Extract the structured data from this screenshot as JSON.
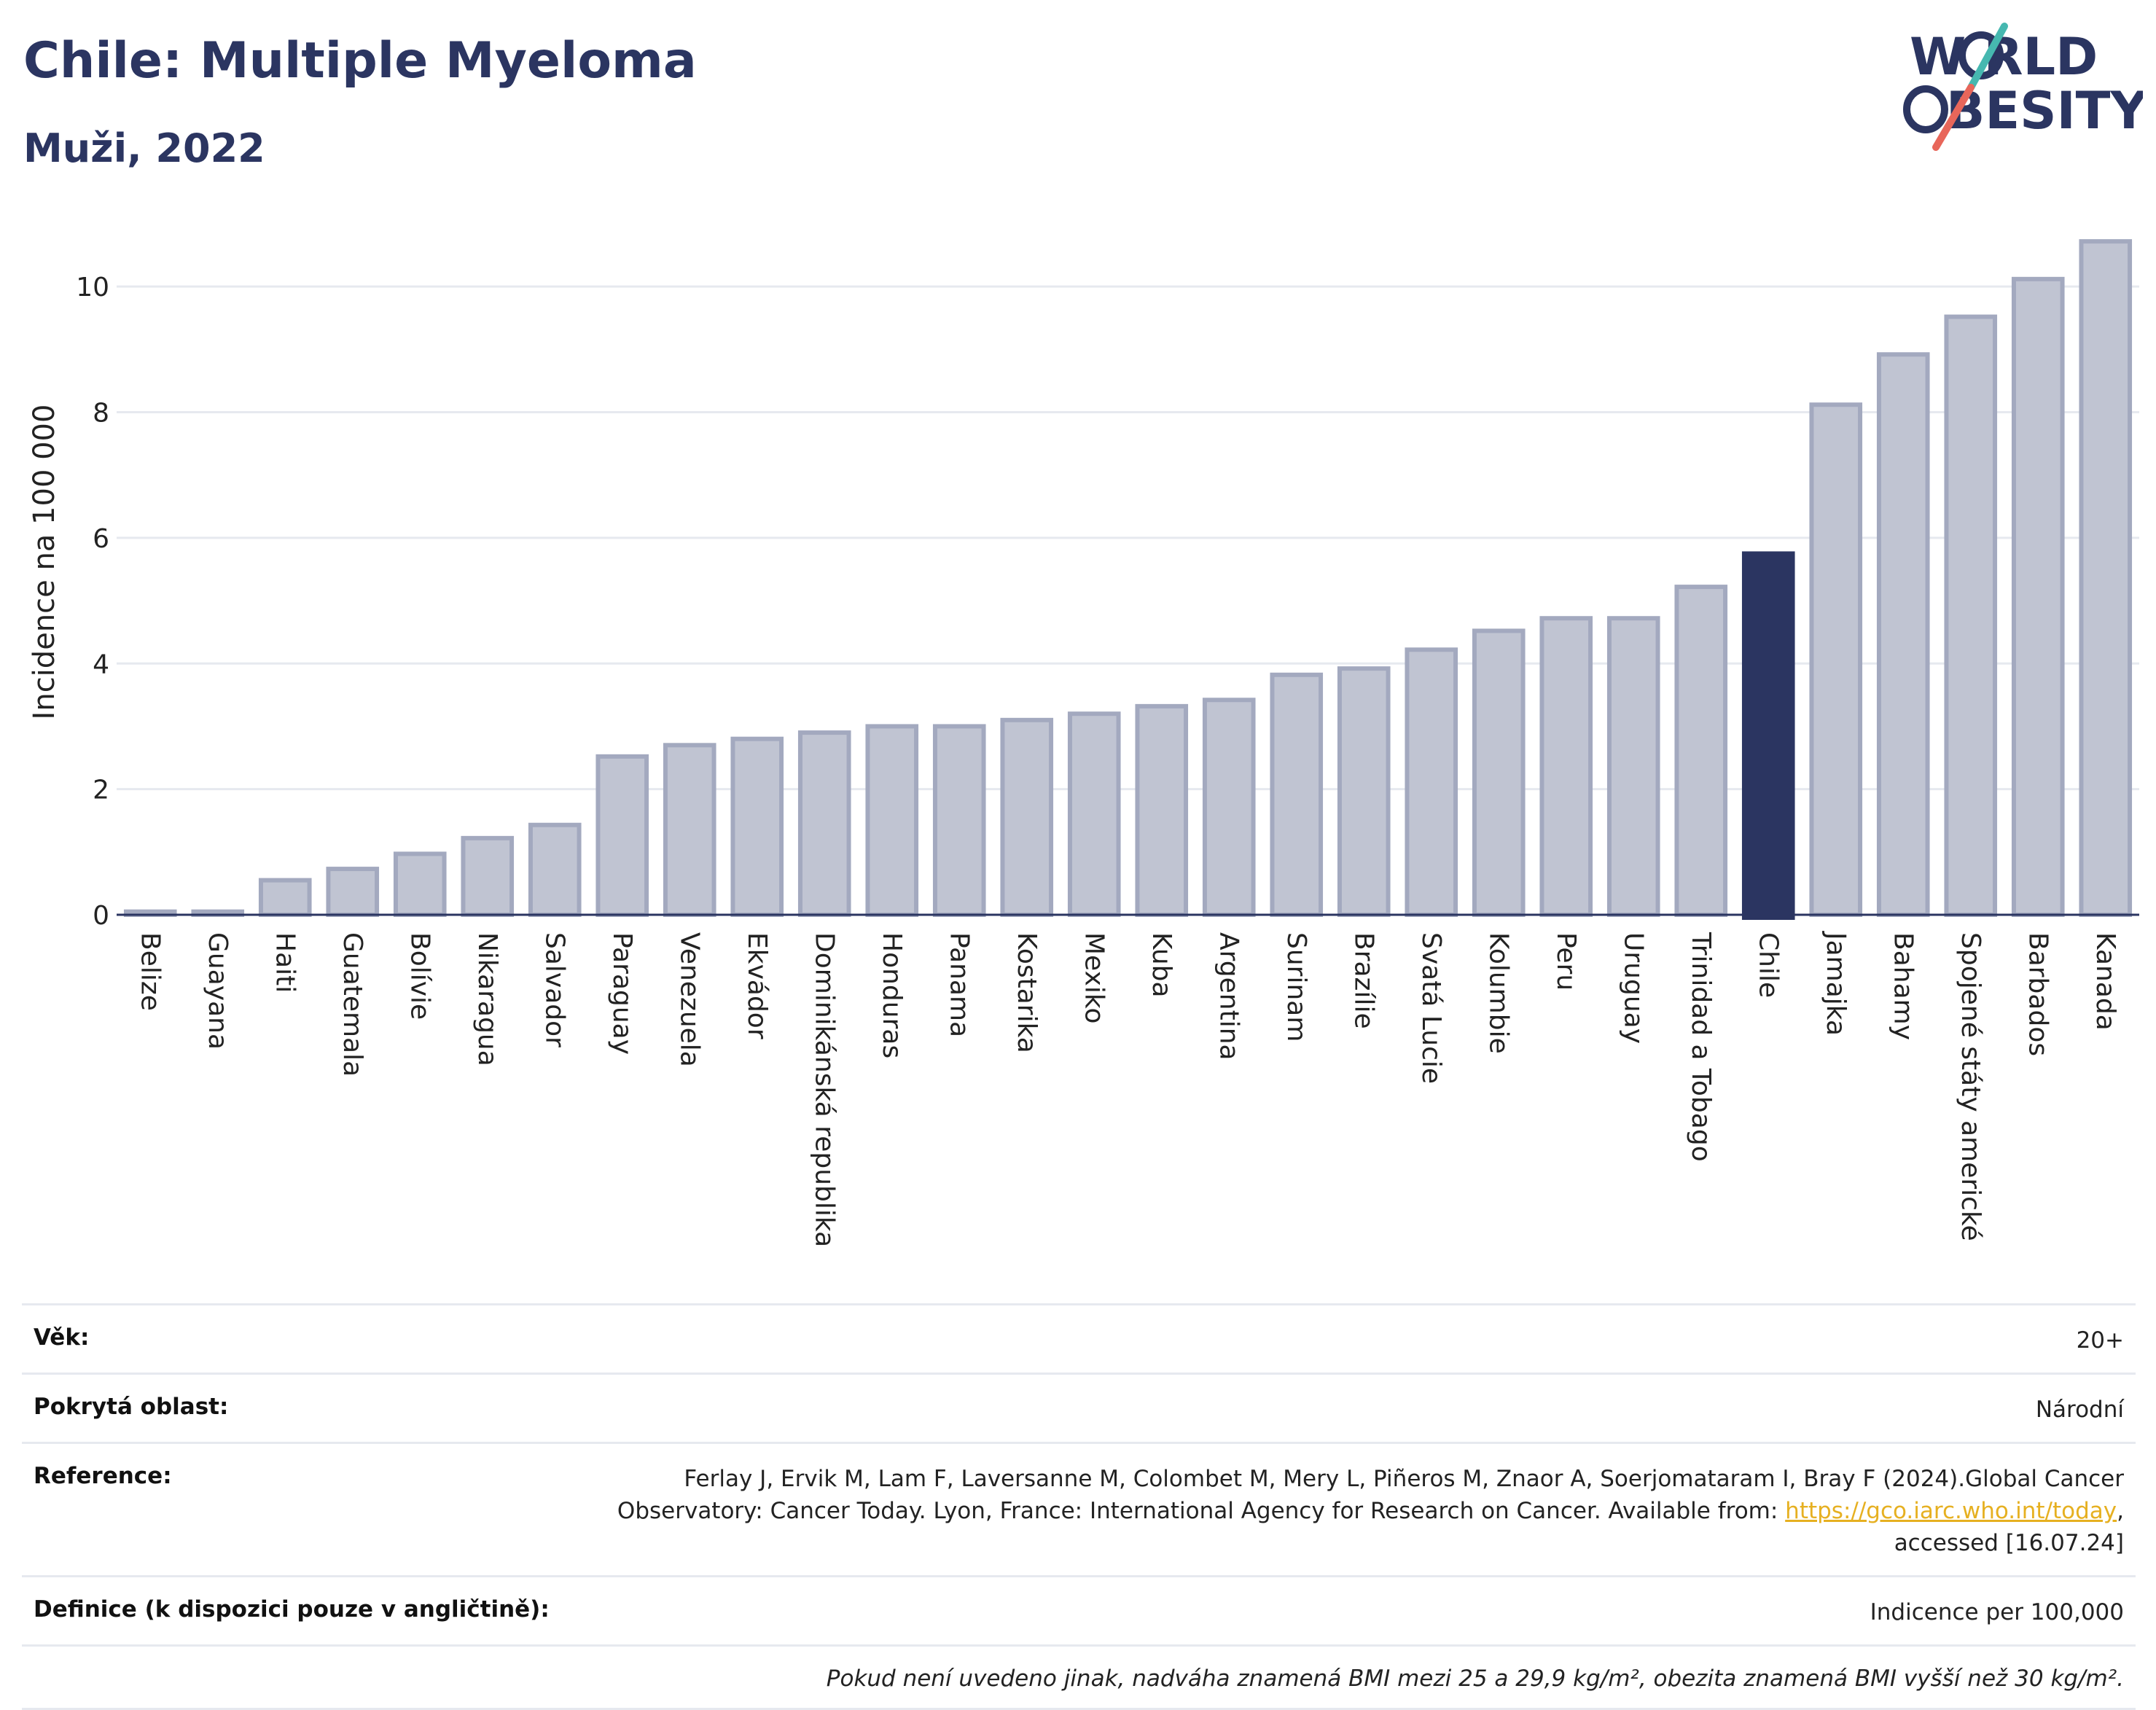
{
  "header": {
    "title": "Chile: Multiple Myeloma",
    "subtitle": "Muži, 2022"
  },
  "logo": {
    "line1": "W   RLD",
    "line2": "BESITY",
    "text": "WORLD OBESITY",
    "slash_colors": [
      "#46b8b0",
      "#e8665a"
    ]
  },
  "chart_data": {
    "type": "bar",
    "title": "Chile: Multiple Myeloma",
    "subtitle": "Muži, 2022",
    "xlabel": "",
    "ylabel": "Incidence na 100 000",
    "ylim": [
      0,
      11
    ],
    "yticks": [
      0,
      2,
      4,
      6,
      8,
      10
    ],
    "grid": true,
    "highlight": "Chile",
    "colors": {
      "bar": "#c0c4d2",
      "bar_edge": "#a3a9bf",
      "highlight": "#2b3561",
      "grid": "#e6e9ef",
      "axis": "#2b3561"
    },
    "categories": [
      "Belize",
      "Guayana",
      "Haiti",
      "Guatemala",
      "Bolívie",
      "Nikaragua",
      "Salvador",
      "Paraguay",
      "Venezuela",
      "Ekvádor",
      "Dominikánská republika",
      "Honduras",
      "Panama",
      "Kostarika",
      "Mexiko",
      "Kuba",
      "Argentina",
      "Surinam",
      "Brazílie",
      "Svatá Lucie",
      "Kolumbie",
      "Peru",
      "Uruguay",
      "Trinidad a Tobago",
      "Chile",
      "Jamajka",
      "Bahamy",
      "Spojené státy americké",
      "Barbados",
      "Kanada"
    ],
    "values": [
      0.05,
      0.05,
      0.55,
      0.73,
      0.97,
      1.22,
      1.43,
      2.52,
      2.7,
      2.8,
      2.9,
      3.0,
      3.0,
      3.1,
      3.2,
      3.32,
      3.42,
      3.82,
      3.92,
      4.22,
      4.52,
      4.72,
      4.72,
      5.22,
      5.75,
      8.12,
      8.92,
      9.52,
      10.12,
      10.72
    ]
  },
  "info": {
    "age_label": "Věk:",
    "age_value": "20+",
    "area_label": "Pokrytá oblast:",
    "area_value": "Národní",
    "ref_label": "Reference:",
    "ref_text_1": "Ferlay J, Ervik M, Lam F, Laversanne M, Colombet M, Mery L, Piñeros M, Znaor A, Soerjomataram I, Bray F (2024).Global Cancer Observatory: Cancer Today. Lyon, France: International Agency for Research on Cancer. Available from: ",
    "ref_link": "https://gco.iarc.who.int/today",
    "ref_text_2": ", accessed [16.07.24]",
    "def_label": "Definice (k dispozici pouze v angličtině):",
    "def_value": "Indicence per 100,000",
    "note": "Pokud není uvedeno jinak, nadváha znamená BMI mezi 25 a 29,9 kg/m², obezita znamená BMI vyšší než 30 kg/m²."
  }
}
